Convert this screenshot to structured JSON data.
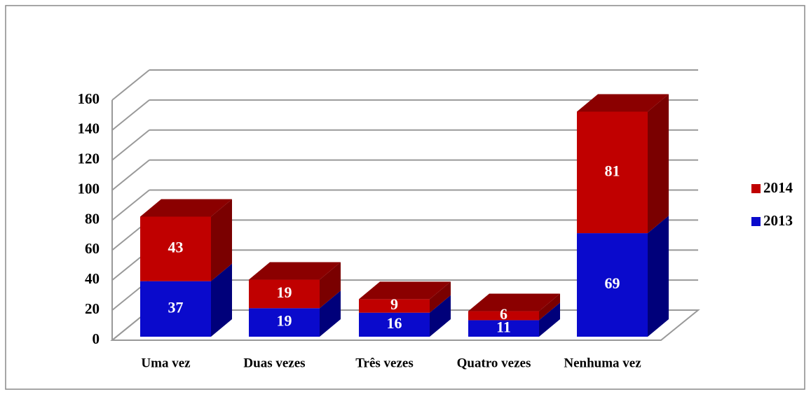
{
  "chart_data": {
    "type": "bar3d_stacked",
    "categories": [
      "Uma vez",
      "Duas vezes",
      "Três vezes",
      "Quatro vezes",
      "Nenhuma vez"
    ],
    "series": [
      {
        "name": "2013",
        "color": "#0a0acc",
        "side_color": "#00007a",
        "values": [
          37,
          19,
          16,
          11,
          69
        ]
      },
      {
        "name": "2014",
        "color": "#c00000",
        "side_color": "#7a0000",
        "values": [
          43,
          19,
          9,
          6,
          81
        ]
      }
    ],
    "ylim": [
      0,
      160
    ],
    "yticks": [
      0,
      20,
      40,
      60,
      80,
      100,
      120,
      140,
      160
    ],
    "grid": true,
    "legend": "right"
  }
}
